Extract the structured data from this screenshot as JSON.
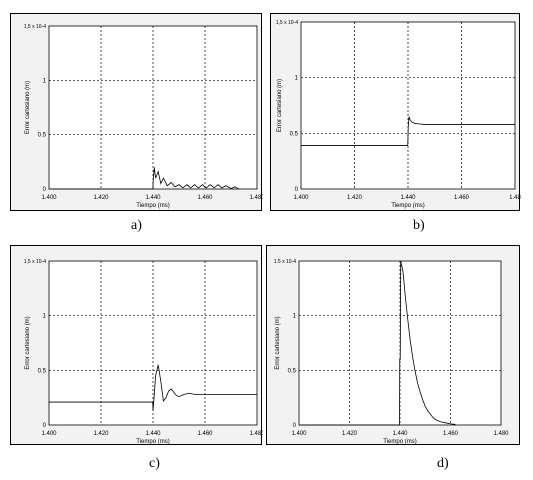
{
  "charts": [
    {
      "id": "a",
      "caption": "a)",
      "chart_data": {
        "type": "line",
        "xlabel": "Tiempo (ms)",
        "ylabel": "Error cartesiano (m)",
        "xlim": [
          1.4,
          1.48
        ],
        "ylim": [
          0,
          1.5
        ],
        "x_ticks": [
          "1.400",
          "1.420",
          "1.440",
          "1.460",
          "1.480"
        ],
        "y_ticks": [
          "0",
          "0.5",
          "1",
          "1,5 x 10-4"
        ],
        "grid": true,
        "series": [
          {
            "x": [
              1.4,
              1.44,
              1.44,
              1.4405,
              1.441,
              1.442,
              1.443,
              1.444,
              1.4455,
              1.447,
              1.4485,
              1.45,
              1.4515,
              1.453,
              1.4545,
              1.456,
              1.4575,
              1.459,
              1.4605,
              1.462,
              1.4635,
              1.465,
              1.4665,
              1.468,
              1.47,
              1.4715,
              1.473
            ],
            "y": [
              0,
              0,
              0.05,
              0.2,
              0.1,
              0.16,
              0.05,
              0.1,
              0.03,
              0.06,
              0.02,
              0.04,
              0.01,
              0.04,
              0.01,
              0.04,
              0.01,
              0.04,
              0.01,
              0.04,
              0.01,
              0.04,
              0.01,
              0.03,
              0.005,
              0.02,
              0
            ]
          }
        ]
      }
    },
    {
      "id": "b",
      "caption": "b)",
      "chart_data": {
        "type": "line",
        "xlabel": "Tiempo (ms)",
        "ylabel": "Error cartesiano (m)",
        "xlim": [
          1.4,
          1.48
        ],
        "ylim": [
          0,
          1.5
        ],
        "x_ticks": [
          "1.400",
          "1.420",
          "1.440",
          "1.460",
          "1.48"
        ],
        "y_ticks": [
          "0",
          "0.5",
          "1",
          "1,5 x 10-4"
        ],
        "grid": true,
        "series": [
          {
            "x": [
              1.4,
              1.4399,
              1.4401,
              1.4404,
              1.4408,
              1.4415,
              1.4425,
              1.444,
              1.446,
              1.45,
              1.48
            ],
            "y": [
              0.39,
              0.39,
              0.56,
              0.65,
              0.62,
              0.6,
              0.59,
              0.585,
              0.58,
              0.58,
              0.58
            ]
          }
        ]
      }
    },
    {
      "id": "c",
      "caption": "c)",
      "chart_data": {
        "type": "line",
        "xlabel": "Tiempo (ms)",
        "ylabel": "Error cartesiano (m)",
        "xlim": [
          1.4,
          1.48
        ],
        "ylim": [
          0,
          1.5
        ],
        "x_ticks": [
          "1.400",
          "1.420",
          "1.440",
          "1.460",
          "1.480"
        ],
        "y_ticks": [
          "0",
          "0.5",
          "1",
          "1,5 x 10-4"
        ],
        "grid": true,
        "series": [
          {
            "x": [
              1.4,
              1.4399,
              1.44,
              1.4405,
              1.441,
              1.442,
              1.443,
              1.444,
              1.445,
              1.446,
              1.447,
              1.448,
              1.449,
              1.45,
              1.452,
              1.454,
              1.456,
              1.458,
              1.48
            ],
            "y": [
              0.21,
              0.21,
              0.13,
              0.28,
              0.45,
              0.55,
              0.4,
              0.22,
              0.25,
              0.31,
              0.33,
              0.3,
              0.27,
              0.26,
              0.28,
              0.29,
              0.28,
              0.28,
              0.28
            ]
          }
        ]
      }
    },
    {
      "id": "d",
      "caption": "d)",
      "chart_data": {
        "type": "line",
        "xlabel": "Tiempo (ms)",
        "ylabel": "Error cartesiano (m)",
        "xlim": [
          1.4,
          1.48
        ],
        "ylim": [
          0,
          1.5
        ],
        "x_ticks": [
          "1.400",
          "1.420",
          "1.440",
          "1.460",
          "1.480"
        ],
        "y_ticks": [
          "0",
          "0.5",
          "1",
          "1.5 x 10-4"
        ],
        "grid": true,
        "series": [
          {
            "x": [
              1.4,
              1.4398,
              1.4399,
              1.4401,
              1.4403,
              1.4412,
              1.442,
              1.443,
              1.444,
              1.445,
              1.446,
              1.447,
              1.448,
              1.449,
              1.45,
              1.451,
              1.452,
              1.453,
              1.454,
              1.456,
              1.458,
              1.46,
              1.462
            ],
            "y": [
              0,
              0,
              0.6,
              0.6,
              1.5,
              1.4,
              1.2,
              0.98,
              0.78,
              0.62,
              0.49,
              0.38,
              0.3,
              0.23,
              0.17,
              0.13,
              0.1,
              0.07,
              0.05,
              0.03,
              0.02,
              0.01,
              0.005
            ]
          }
        ]
      }
    }
  ]
}
